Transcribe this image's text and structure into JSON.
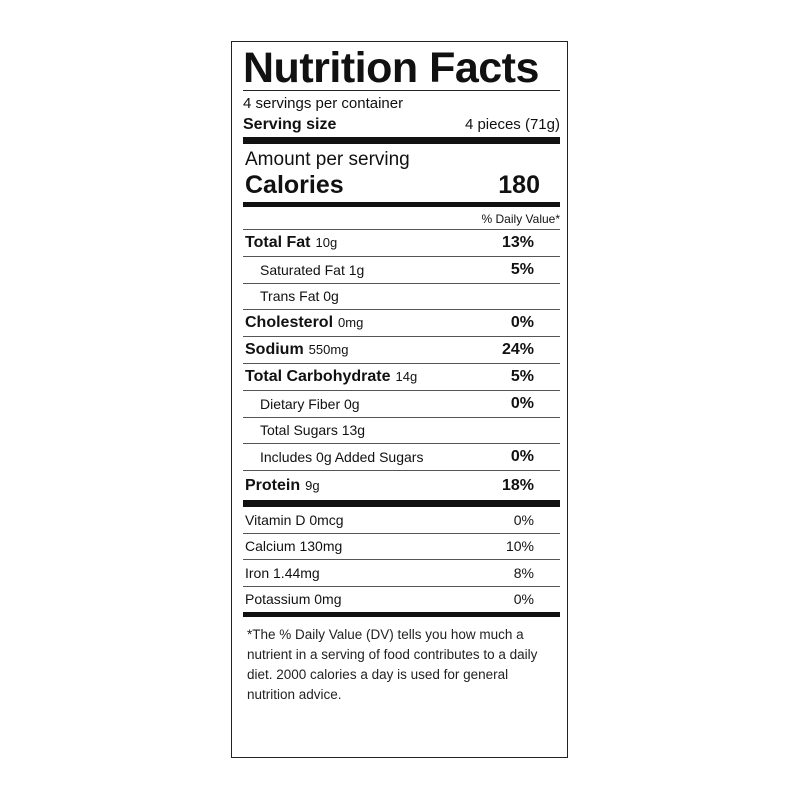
{
  "title": "Nutrition Facts",
  "servings_per_container": "4 servings per container",
  "serving_size": {
    "label": "Serving size",
    "value": "4 pieces (71g)"
  },
  "amount_per_serving": "Amount per serving",
  "calories": {
    "label": "Calories",
    "value": "180"
  },
  "daily_value_header": "% Daily Value*",
  "nutrients": [
    {
      "name": "Total Fat",
      "amount": "10g",
      "dv": "13%"
    },
    {
      "name": "Saturated Fat 1g",
      "dv": "5%"
    },
    {
      "name": "Trans Fat 0g"
    },
    {
      "name": "Cholesterol",
      "amount": "0mg",
      "dv": "0%"
    },
    {
      "name": "Sodium",
      "amount": "550mg",
      "dv": "24%"
    },
    {
      "name": "Total Carbohydrate",
      "amount": "14g",
      "dv": "5%"
    },
    {
      "name": "Dietary Fiber 0g",
      "dv": "0%"
    },
    {
      "name": "Total Sugars 13g"
    },
    {
      "name": "Includes 0g Added Sugars",
      "dv": "0%"
    },
    {
      "name": "Protein",
      "amount": "9g",
      "dv": "18%"
    }
  ],
  "vitamins": [
    {
      "name": "Vitamin D 0mcg",
      "dv": "0%"
    },
    {
      "name": "Calcium 130mg",
      "dv": "10%"
    },
    {
      "name": "Iron 1.44mg",
      "dv": "8%"
    },
    {
      "name": "Potassium 0mg",
      "dv": "0%"
    }
  ],
  "footnote": "*The % Daily Value (DV) tells you how much a nutrient in a serving of food contributes to a daily diet. 2000 calories a day is used for general nutrition advice."
}
